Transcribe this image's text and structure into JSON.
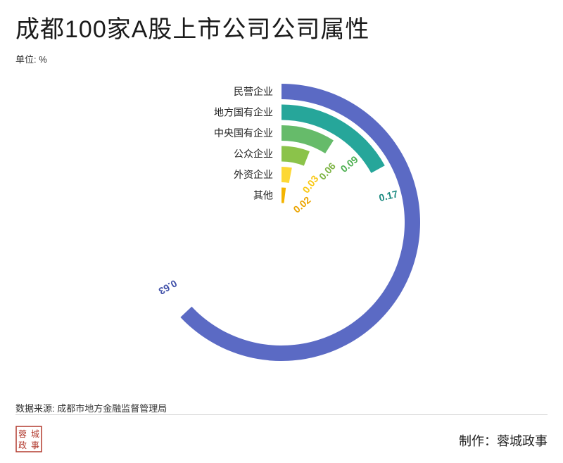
{
  "title": "成都100家A股上市公司公司属性",
  "unit": "单位: %",
  "source": "数据来源: 成都市地方金融监督管理局",
  "credit": "制作：蓉城政事",
  "logo": {
    "text": [
      "蓉",
      "城",
      "政",
      "事"
    ],
    "color": "#b23a2e"
  },
  "chart_data": {
    "type": "radial-bar",
    "max": 1,
    "series": [
      {
        "label": "民营企业",
        "value": 0.63,
        "value_text": "0.63",
        "color": "#5b6ac4"
      },
      {
        "label": "地方国有企业",
        "value": 0.17,
        "value_text": "0.17",
        "color": "#26a69a"
      },
      {
        "label": "中央国有企业",
        "value": 0.09,
        "value_text": "0.09",
        "color": "#66bb6a"
      },
      {
        "label": "公众企业",
        "value": 0.06,
        "value_text": "0.06",
        "color": "#8bc34a"
      },
      {
        "label": "外资企业",
        "value": 0.03,
        "value_text": "0.03",
        "color": "#fdd835"
      },
      {
        "label": "其他",
        "value": 0.02,
        "value_text": "0.02",
        "color": "#f4b400"
      }
    ],
    "label_colors": [
      "#3f4fa8",
      "#1b8a80",
      "#4caf50",
      "#7cb342",
      "#f9c710",
      "#eba400"
    ]
  }
}
